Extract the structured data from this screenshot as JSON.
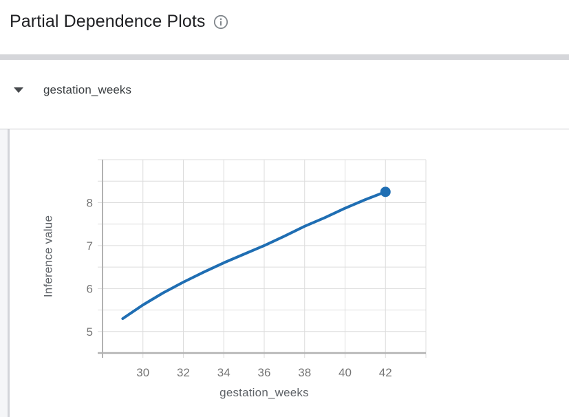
{
  "header": {
    "title": "Partial Dependence Plots",
    "info_icon": "info-icon"
  },
  "section": {
    "label": "gestation_weeks",
    "collapse_icon": "triangle-down",
    "expanded": true
  },
  "chart_data": {
    "type": "line",
    "title": "",
    "xlabel": "gestation_weeks",
    "ylabel": "Inference value",
    "x": [
      29,
      30,
      31,
      32,
      33,
      34,
      35,
      36,
      37,
      38,
      39,
      40,
      41,
      42
    ],
    "y": [
      5.3,
      5.62,
      5.9,
      6.15,
      6.38,
      6.6,
      6.8,
      7.0,
      7.22,
      7.45,
      7.65,
      7.87,
      8.07,
      8.25
    ],
    "xlim": [
      28,
      44
    ],
    "ylim": [
      4.5,
      9.0
    ],
    "x_ticks": [
      30,
      32,
      34,
      36,
      38,
      40,
      42
    ],
    "y_ticks": [
      5,
      6,
      7,
      8
    ],
    "x_grid_step": 2,
    "y_grid_step": 0.5,
    "grid": true,
    "legend": "none",
    "endpoint_marker": {
      "x": 42,
      "y": 8.25
    }
  },
  "colors": {
    "line": "#1f6eb3",
    "marker": "#1f6eb3",
    "gridline": "#dcdcdc",
    "axis": "#b2b2b2",
    "tick_label": "#757575",
    "axis_title": "#5f6368",
    "title_text": "#202124",
    "divider_band": "#d5d6da",
    "icon": "#80868b"
  }
}
